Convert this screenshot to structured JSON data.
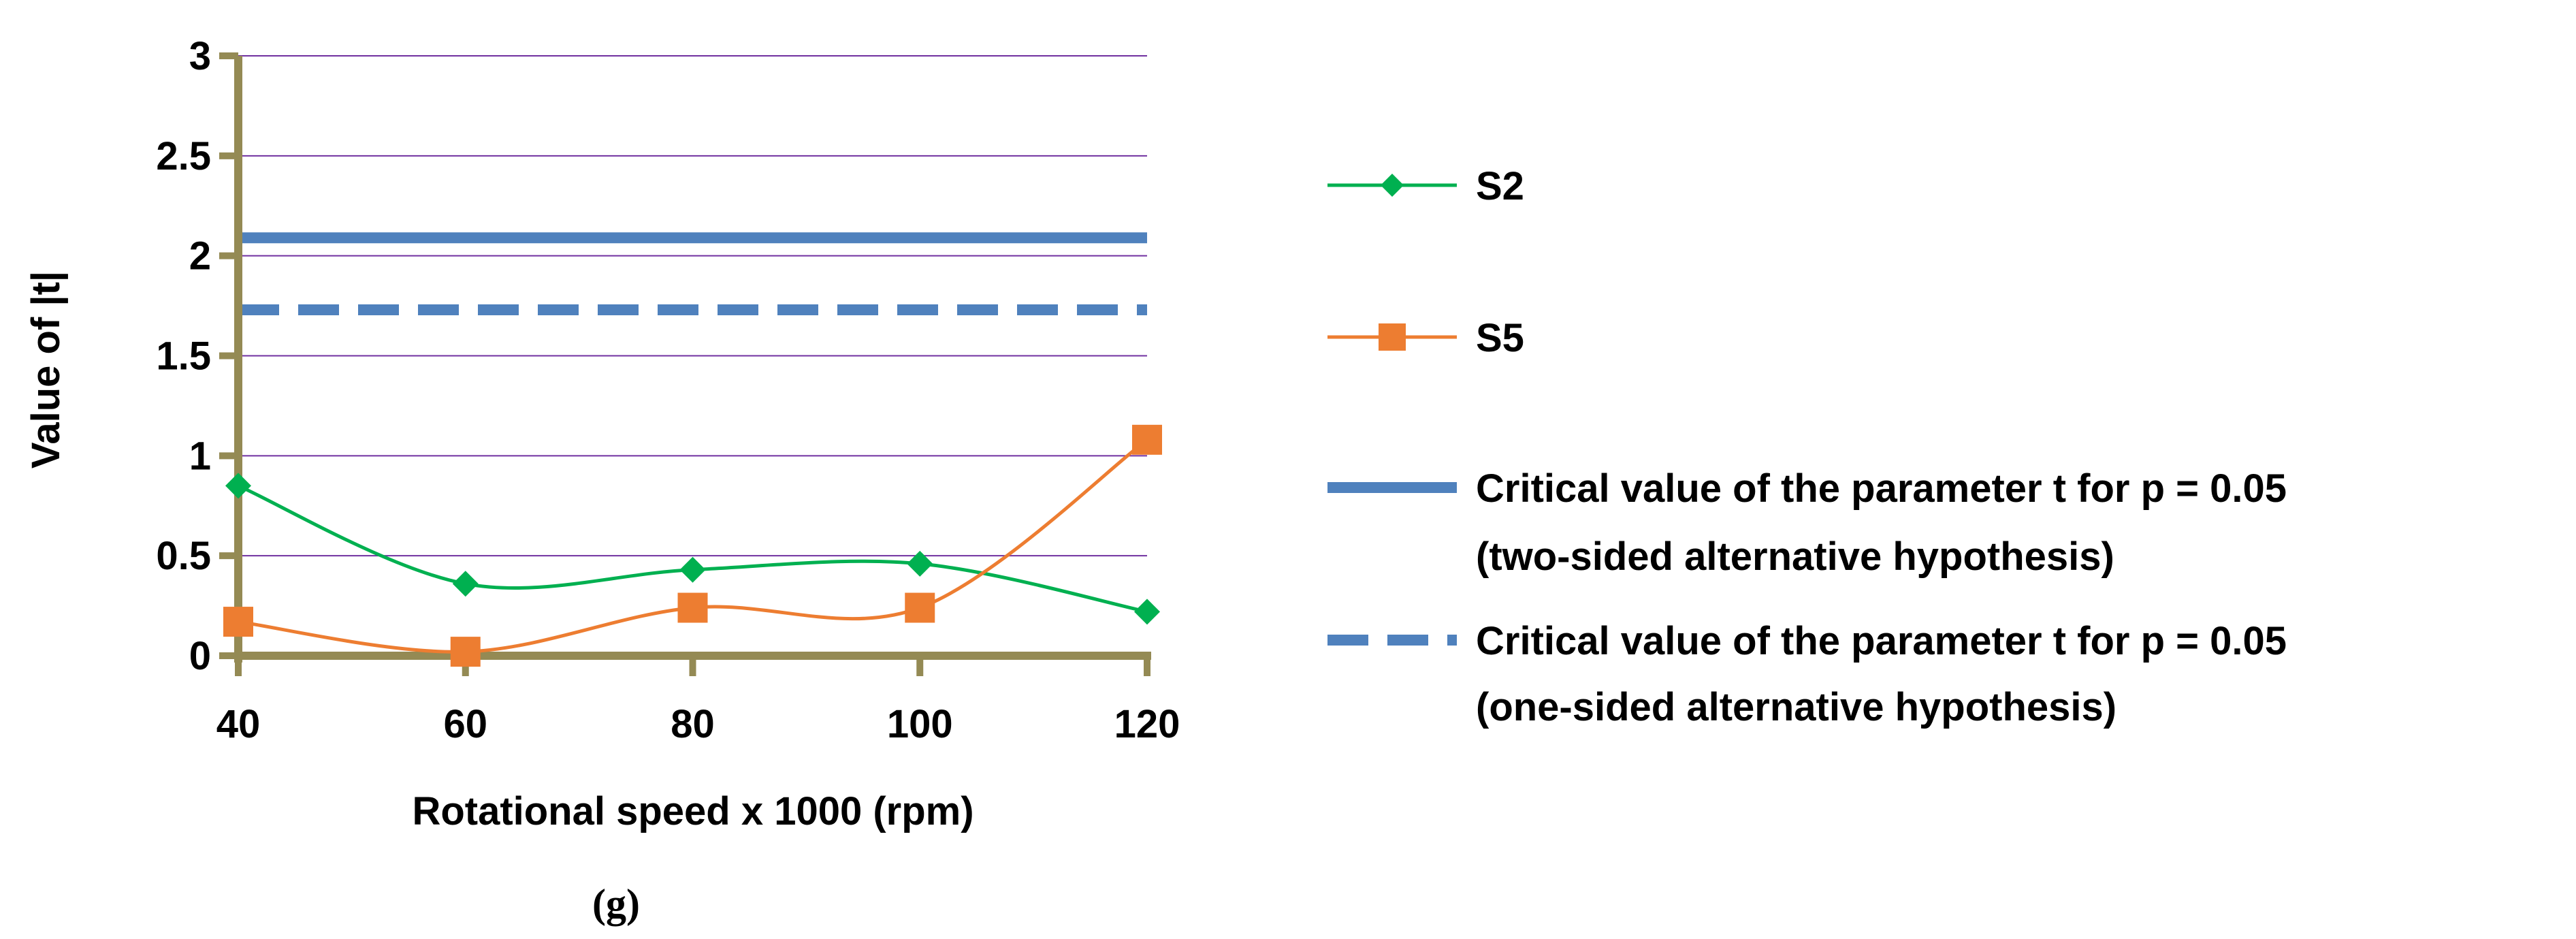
{
  "chart_data": {
    "type": "line",
    "title": "",
    "xlabel": "Rotational speed x 1000 (rpm)",
    "ylabel": "Value of |t|",
    "x": [
      40,
      60,
      80,
      100,
      120
    ],
    "x_ticks": [
      "40",
      "60",
      "80",
      "100",
      "120"
    ],
    "y_ticks": [
      "0",
      "0.5",
      "1",
      "1.5",
      "2",
      "2.5",
      "3"
    ],
    "ylim": [
      0,
      3
    ],
    "grid": "horizontal",
    "legend_position": "right",
    "series": [
      {
        "name": "S2",
        "values": [
          0.85,
          0.36,
          0.43,
          0.46,
          0.22
        ],
        "color": "#00B050",
        "marker": "diamond",
        "style": "smooth"
      },
      {
        "name": "S5",
        "values": [
          0.17,
          0.02,
          0.24,
          0.24,
          1.08
        ],
        "color": "#ED7D31",
        "marker": "square",
        "style": "smooth"
      }
    ],
    "reference_lines": [
      {
        "name": "two-sided",
        "value": 2.09,
        "color": "#4F81BD",
        "dash": "solid",
        "label_line1": "Critical value of the parameter t for p = 0.05",
        "label_line2": "(two-sided alternative hypothesis)"
      },
      {
        "name": "one-sided",
        "value": 1.73,
        "color": "#4F81BD",
        "dash": "dashed",
        "label_line1": "Critical value of the parameter t for p = 0.05",
        "label_line2": "(one-sided alternative hypothesis)"
      }
    ],
    "colors": {
      "grid": "#7030A0",
      "axis": "#948A54"
    },
    "caption": "(g)"
  }
}
